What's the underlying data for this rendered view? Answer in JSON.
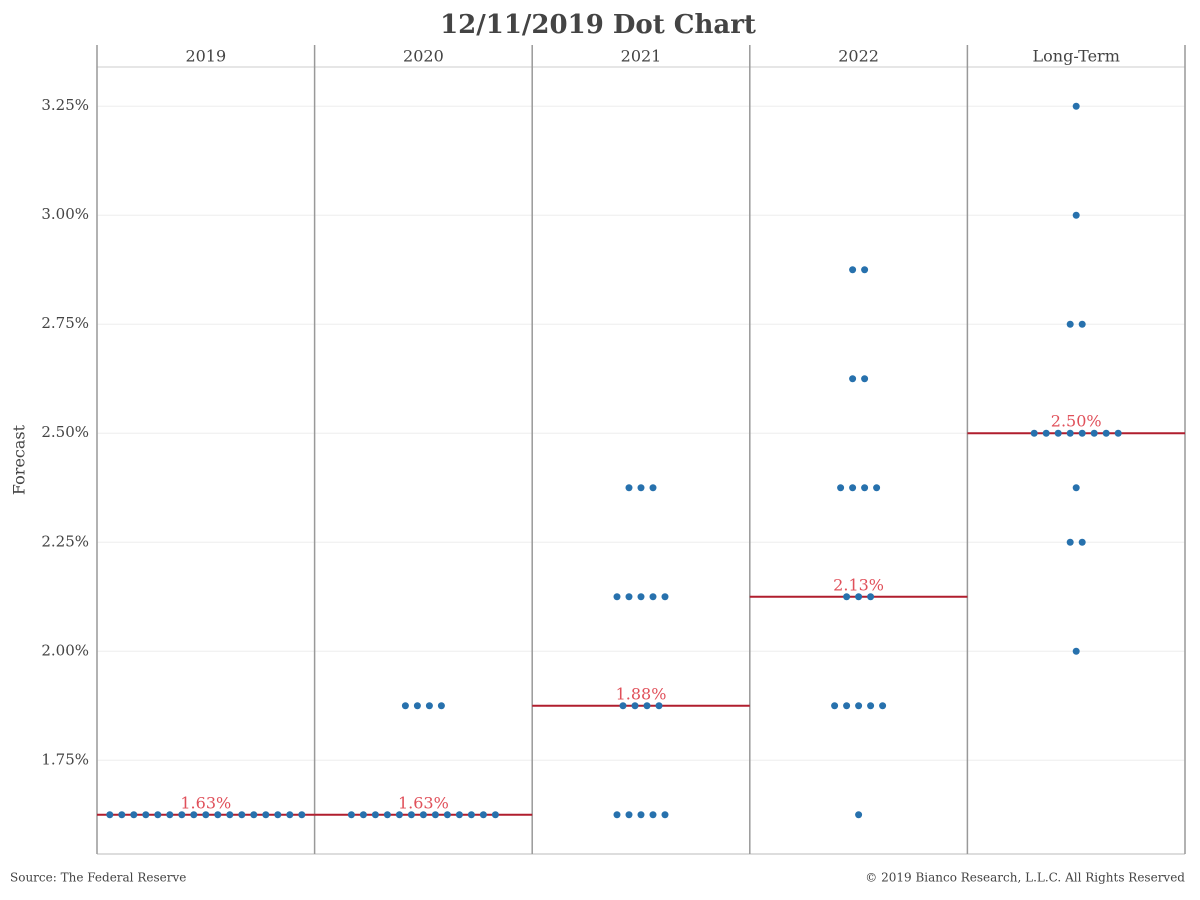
{
  "chart_data": {
    "type": "dot",
    "title": "12/11/2019 Dot Chart",
    "y_label": "Forecast",
    "source": "Source: The Federal Reserve",
    "copyright": "© 2019 Bianco Research, L.L.C. All Rights Reserved",
    "ylim": [
      1.535,
      3.34
    ],
    "yticks": [
      {
        "value": 1.75,
        "label": "1.75%"
      },
      {
        "value": 2.0,
        "label": "2.00%"
      },
      {
        "value": 2.25,
        "label": "2.25%"
      },
      {
        "value": 2.5,
        "label": "2.50%"
      },
      {
        "value": 2.75,
        "label": "2.75%"
      },
      {
        "value": 3.0,
        "label": "3.00%"
      },
      {
        "value": 3.25,
        "label": "3.25%"
      }
    ],
    "grid": true,
    "dot_color": "#2771ad",
    "median_color": "#b01e2e",
    "median_label_color": "#e0505a",
    "panels": [
      {
        "name": "2019",
        "values": [
          1.625,
          1.625,
          1.625,
          1.625,
          1.625,
          1.625,
          1.625,
          1.625,
          1.625,
          1.625,
          1.625,
          1.625,
          1.625,
          1.625,
          1.625,
          1.625,
          1.625
        ],
        "median": 1.625,
        "median_label": "1.63%"
      },
      {
        "name": "2020",
        "values": [
          1.625,
          1.625,
          1.625,
          1.625,
          1.625,
          1.625,
          1.625,
          1.625,
          1.625,
          1.625,
          1.625,
          1.625,
          1.625,
          1.875,
          1.875,
          1.875,
          1.875
        ],
        "median": 1.625,
        "median_label": "1.63%"
      },
      {
        "name": "2021",
        "values": [
          1.625,
          1.625,
          1.625,
          1.625,
          1.625,
          1.875,
          1.875,
          1.875,
          1.875,
          2.125,
          2.125,
          2.125,
          2.125,
          2.125,
          2.375,
          2.375,
          2.375
        ],
        "median": 1.875,
        "median_label": "1.88%"
      },
      {
        "name": "2022",
        "values": [
          1.625,
          1.875,
          1.875,
          1.875,
          1.875,
          1.875,
          2.125,
          2.125,
          2.125,
          2.375,
          2.375,
          2.375,
          2.375,
          2.625,
          2.625,
          2.875,
          2.875
        ],
        "median": 2.125,
        "median_label": "2.13%"
      },
      {
        "name": "Long-Term",
        "values": [
          2.0,
          2.25,
          2.25,
          2.375,
          2.5,
          2.5,
          2.5,
          2.5,
          2.5,
          2.5,
          2.5,
          2.5,
          2.75,
          2.75,
          3.0,
          3.25
        ],
        "median": 2.5,
        "median_label": "2.50%"
      }
    ]
  }
}
